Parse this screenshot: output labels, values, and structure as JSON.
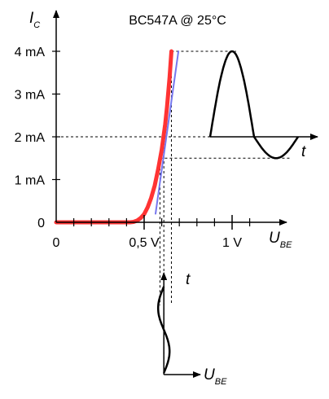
{
  "chart_data": {
    "type": "line",
    "title": "BC547A @ 25°C",
    "ylabel": {
      "main": "I",
      "sub": "C"
    },
    "xlabel": {
      "main": "U",
      "sub": "BE"
    },
    "xlim": [
      0,
      1.2
    ],
    "ylim": [
      0,
      4
    ],
    "x_ticks": [
      {
        "value": 0,
        "label": "0"
      },
      {
        "value": 0.5,
        "label": "0,5 V"
      },
      {
        "value": 1.0,
        "label": "1 V"
      }
    ],
    "x_minor_ticks": [
      0.1,
      0.2,
      0.3,
      0.4,
      0.6,
      0.7,
      0.8,
      0.9,
      1.1
    ],
    "y_ticks": [
      {
        "value": 0,
        "label": "0"
      },
      {
        "value": 1,
        "label": "1 mA"
      },
      {
        "value": 2,
        "label": "2 mA"
      },
      {
        "value": 3,
        "label": "3 mA"
      },
      {
        "value": 4,
        "label": "4 mA"
      }
    ],
    "series": [
      {
        "color": "#ff3333",
        "points": [
          [
            0.0,
            0.0
          ],
          [
            0.42,
            0.0
          ],
          [
            0.44,
            0.01
          ],
          [
            0.46,
            0.04
          ],
          [
            0.48,
            0.1
          ],
          [
            0.5,
            0.19
          ],
          [
            0.52,
            0.35
          ],
          [
            0.54,
            0.57
          ],
          [
            0.56,
            0.86
          ],
          [
            0.58,
            1.25
          ],
          [
            0.6,
            1.7
          ],
          [
            0.62,
            2.3
          ],
          [
            0.63,
            2.7
          ],
          [
            0.645,
            3.4
          ],
          [
            0.655,
            4.0
          ]
        ]
      },
      {
        "color": "#7777ee",
        "points": [
          [
            0.565,
            0.2
          ],
          [
            0.695,
            4.0
          ]
        ]
      }
    ],
    "operating_point": {
      "u_be": 0.612,
      "i_c": 2.0
    },
    "output_signal": {
      "axis_label": "t",
      "baseline_ic": 2.0,
      "peak_ic": 4.0,
      "trough_ic": 1.5
    },
    "input_signal": {
      "axis_label_vertical": "t",
      "axis_label_horizontal": {
        "main": "U",
        "sub": "BE"
      },
      "u_min": 0.59,
      "u_max": 0.655
    },
    "colors": {
      "axis": "#000000",
      "curve": "#ff3333",
      "tangent": "#7777ee",
      "signal": "#000000",
      "guide": "#000000"
    }
  }
}
